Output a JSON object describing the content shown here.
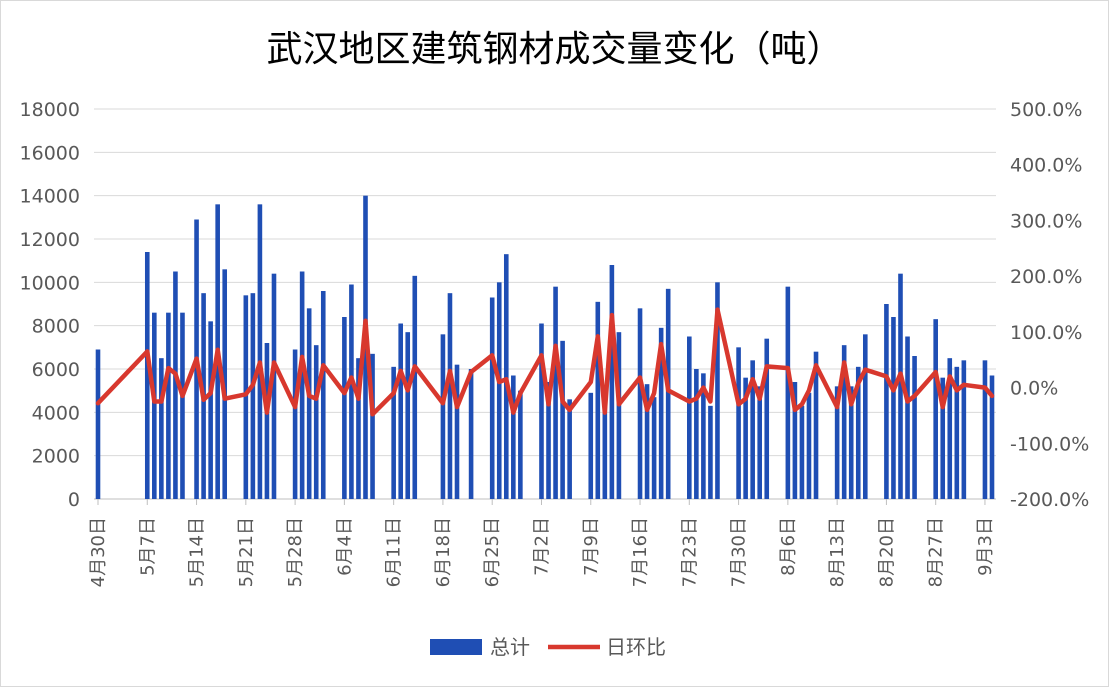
{
  "chart_data": {
    "type": "bar+line",
    "title": "武汉地区建筑钢材成交量变化（吨）",
    "left_axis": {
      "ylim": [
        0,
        18000
      ],
      "ticks": [
        "0",
        "2000",
        "4000",
        "6000",
        "8000",
        "10000",
        "12000",
        "14000",
        "16000",
        "18000"
      ]
    },
    "right_axis": {
      "ylim": [
        -200,
        500
      ],
      "ticks": [
        "-200.0%",
        "-100.0%",
        "0.0%",
        "100.0%",
        "200.0%",
        "300.0%",
        "400.0%",
        "500.0%"
      ]
    },
    "x_axis_labels": [
      "4月30日",
      "5月7日",
      "5月14日",
      "5月21日",
      "5月28日",
      "6月4日",
      "6月11日",
      "6月18日",
      "6月25日",
      "7月2日",
      "7月9日",
      "7月16日",
      "7月23日",
      "7月30日",
      "8月6日",
      "8月13日",
      "8月20日",
      "8月27日",
      "9月3日"
    ],
    "grid": true,
    "legend_position": "bottom",
    "series": [
      {
        "name": "总计",
        "type": "bar",
        "color": "#1f4eb4",
        "points": [
          [
            0,
            6900
          ],
          [
            7,
            11400
          ],
          [
            8,
            8600
          ],
          [
            9,
            6500
          ],
          [
            10,
            8600
          ],
          [
            11,
            10500
          ],
          [
            12,
            8600
          ],
          [
            14,
            12900
          ],
          [
            15,
            9500
          ],
          [
            16,
            8200
          ],
          [
            17,
            13600
          ],
          [
            18,
            10600
          ],
          [
            21,
            9400
          ],
          [
            22,
            9500
          ],
          [
            23,
            13600
          ],
          [
            24,
            7200
          ],
          [
            25,
            10400
          ],
          [
            28,
            6900
          ],
          [
            29,
            10500
          ],
          [
            30,
            8800
          ],
          [
            31,
            7100
          ],
          [
            32,
            9600
          ],
          [
            35,
            8400
          ],
          [
            36,
            9900
          ],
          [
            37,
            6500
          ],
          [
            38,
            14000
          ],
          [
            39,
            6700
          ],
          [
            42,
            6100
          ],
          [
            43,
            8100
          ],
          [
            44,
            7700
          ],
          [
            45,
            10300
          ],
          [
            49,
            7600
          ],
          [
            50,
            9500
          ],
          [
            51,
            6200
          ],
          [
            53,
            6000
          ],
          [
            56,
            9300
          ],
          [
            57,
            10000
          ],
          [
            58,
            11300
          ],
          [
            59,
            5700
          ],
          [
            60,
            5000
          ],
          [
            63,
            8100
          ],
          [
            64,
            5400
          ],
          [
            65,
            9800
          ],
          [
            66,
            7300
          ],
          [
            67,
            4600
          ],
          [
            70,
            4900
          ],
          [
            71,
            9100
          ],
          [
            72,
            4800
          ],
          [
            73,
            10800
          ],
          [
            74,
            7700
          ],
          [
            77,
            8800
          ],
          [
            78,
            5300
          ],
          [
            79,
            4700
          ],
          [
            80,
            7900
          ],
          [
            81,
            9700
          ],
          [
            84,
            7500
          ],
          [
            85,
            6000
          ],
          [
            86,
            5800
          ],
          [
            87,
            4300
          ],
          [
            88,
            10000
          ],
          [
            91,
            7000
          ],
          [
            92,
            5600
          ],
          [
            93,
            6400
          ],
          [
            94,
            5200
          ],
          [
            95,
            7400
          ],
          [
            98,
            9800
          ],
          [
            99,
            5400
          ],
          [
            100,
            4300
          ],
          [
            101,
            4900
          ],
          [
            102,
            6800
          ],
          [
            105,
            5200
          ],
          [
            106,
            7100
          ],
          [
            107,
            5200
          ],
          [
            108,
            6100
          ],
          [
            109,
            7600
          ],
          [
            112,
            9000
          ],
          [
            113,
            8400
          ],
          [
            114,
            10400
          ],
          [
            115,
            7500
          ],
          [
            116,
            6600
          ],
          [
            119,
            8300
          ],
          [
            120,
            5600
          ],
          [
            121,
            6500
          ],
          [
            122,
            6100
          ],
          [
            123,
            6400
          ],
          [
            126,
            6400
          ],
          [
            127,
            5700
          ]
        ]
      },
      {
        "name": "日环比",
        "type": "line",
        "color": "#d8382e",
        "points": [
          [
            0,
            -28
          ],
          [
            7,
            65
          ],
          [
            8,
            -25
          ],
          [
            9,
            -25
          ],
          [
            10,
            35
          ],
          [
            11,
            25
          ],
          [
            12,
            -15
          ],
          [
            14,
            52
          ],
          [
            15,
            -22
          ],
          [
            16,
            -10
          ],
          [
            17,
            68
          ],
          [
            18,
            -20
          ],
          [
            21,
            -12
          ],
          [
            22,
            5
          ],
          [
            23,
            45
          ],
          [
            24,
            -45
          ],
          [
            25,
            45
          ],
          [
            28,
            -35
          ],
          [
            29,
            55
          ],
          [
            30,
            -15
          ],
          [
            31,
            -20
          ],
          [
            32,
            40
          ],
          [
            35,
            -10
          ],
          [
            36,
            18
          ],
          [
            37,
            -20
          ],
          [
            38,
            120
          ],
          [
            39,
            -48
          ],
          [
            42,
            -10
          ],
          [
            43,
            30
          ],
          [
            44,
            -5
          ],
          [
            45,
            38
          ],
          [
            49,
            -28
          ],
          [
            50,
            30
          ],
          [
            51,
            -35
          ],
          [
            53,
            28
          ],
          [
            56,
            58
          ],
          [
            57,
            10
          ],
          [
            58,
            15
          ],
          [
            59,
            -45
          ],
          [
            60,
            -10
          ],
          [
            63,
            58
          ],
          [
            64,
            -30
          ],
          [
            65,
            75
          ],
          [
            66,
            -25
          ],
          [
            67,
            -40
          ],
          [
            70,
            10
          ],
          [
            71,
            92
          ],
          [
            72,
            -45
          ],
          [
            73,
            130
          ],
          [
            74,
            -30
          ],
          [
            77,
            18
          ],
          [
            78,
            -40
          ],
          [
            79,
            -10
          ],
          [
            80,
            78
          ],
          [
            81,
            -5
          ],
          [
            84,
            -25
          ],
          [
            85,
            -20
          ],
          [
            86,
            0
          ],
          [
            87,
            -25
          ],
          [
            88,
            140
          ],
          [
            91,
            -30
          ],
          [
            92,
            -20
          ],
          [
            93,
            15
          ],
          [
            94,
            -20
          ],
          [
            95,
            38
          ],
          [
            98,
            35
          ],
          [
            99,
            -40
          ],
          [
            100,
            -30
          ],
          [
            101,
            -5
          ],
          [
            102,
            40
          ],
          [
            105,
            -35
          ],
          [
            106,
            45
          ],
          [
            107,
            -30
          ],
          [
            108,
            8
          ],
          [
            109,
            32
          ],
          [
            112,
            20
          ],
          [
            113,
            -5
          ],
          [
            114,
            25
          ],
          [
            115,
            -25
          ],
          [
            116,
            -15
          ],
          [
            119,
            28
          ],
          [
            120,
            -35
          ],
          [
            121,
            20
          ],
          [
            122,
            -5
          ],
          [
            123,
            5
          ],
          [
            126,
            0
          ],
          [
            127,
            -15
          ]
        ]
      }
    ]
  }
}
